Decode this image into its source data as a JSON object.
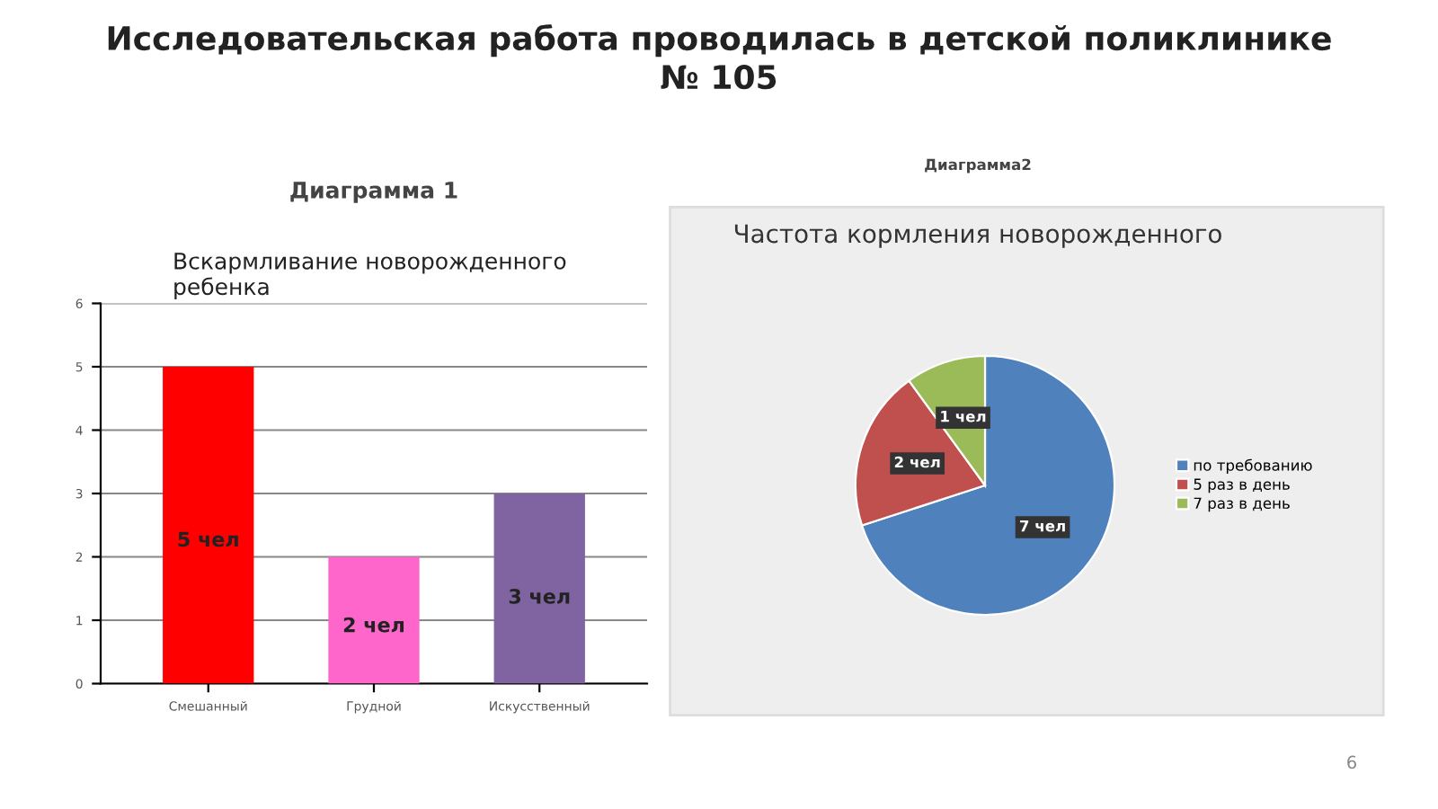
{
  "chart_data": [
    {
      "type": "bar",
      "title": "Диаграмма 1",
      "subtitle": "Вскармливание новорожденного\nребенка",
      "annotations": [
        "Исследовательская работа проводилась в детской поликлинике\n№ 105"
      ],
      "categories": [
        "Смешанный",
        "Грудной",
        "Искусственный"
      ],
      "values": [
        5,
        2,
        3
      ],
      "colors": [
        "#ff0000",
        "#ff66cc",
        "#8064a2"
      ],
      "value_labels": [
        "5 чел",
        "2 чел",
        "3 чел"
      ],
      "ylim": [
        0,
        6
      ],
      "yticks": [
        0,
        1,
        2,
        3,
        4,
        5,
        6
      ],
      "grid": "y",
      "legend": false
    },
    {
      "type": "pie",
      "title": "Диаграмма2",
      "subtitle": "Частота кормления новорожденного",
      "annotations": [
        "6"
      ],
      "categories": [
        "по требованию",
        "5 раз в день",
        "7 раз в день"
      ],
      "values": [
        7,
        2,
        1
      ],
      "colors": [
        "#4f81bd",
        "#c0504d",
        "#9bbb59"
      ],
      "value_labels": [
        "7 чел",
        "2 чел",
        "1 чел"
      ],
      "legend": "right"
    }
  ]
}
